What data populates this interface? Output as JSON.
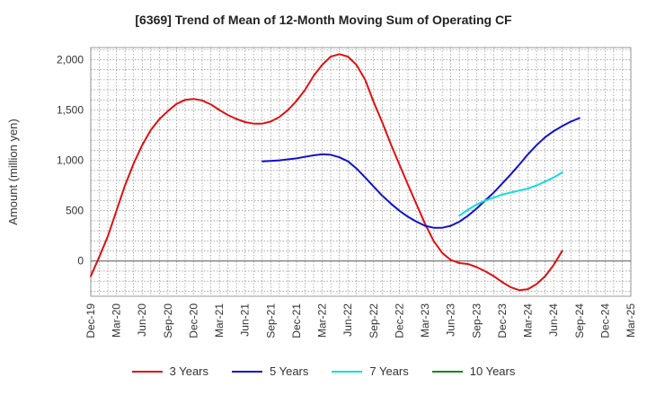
{
  "chart_data": {
    "type": "line",
    "title": "[6369]  Trend of Mean of 12-Month Moving Sum of Operating CF",
    "xlabel": "",
    "ylabel": "Amount (million yen)",
    "ylim": [
      -350,
      2120
    ],
    "yticks": [
      0,
      500,
      1000,
      1500,
      2000
    ],
    "ytick_labels": [
      "0",
      "500",
      "1,000",
      "1,500",
      "2,000"
    ],
    "x_categories": [
      "Dec-19",
      "Mar-20",
      "Jun-20",
      "Sep-20",
      "Dec-20",
      "Mar-21",
      "Jun-21",
      "Sep-21",
      "Dec-21",
      "Mar-22",
      "Jun-22",
      "Sep-22",
      "Dec-22",
      "Mar-23",
      "Jun-23",
      "Sep-23",
      "Dec-23",
      "Mar-24",
      "Jun-24",
      "Sep-24",
      "Dec-24",
      "Mar-25"
    ],
    "grid": true,
    "legend_position": "bottom",
    "series": [
      {
        "name": "3 Years",
        "color": "#dd1111",
        "points": [
          [
            0,
            -150
          ],
          [
            0.33,
            40
          ],
          [
            0.67,
            250
          ],
          [
            1,
            500
          ],
          [
            1.33,
            750
          ],
          [
            1.67,
            970
          ],
          [
            2,
            1150
          ],
          [
            2.33,
            1300
          ],
          [
            2.67,
            1410
          ],
          [
            3,
            1490
          ],
          [
            3.33,
            1560
          ],
          [
            3.67,
            1600
          ],
          [
            4,
            1610
          ],
          [
            4.33,
            1595
          ],
          [
            4.67,
            1555
          ],
          [
            5,
            1500
          ],
          [
            5.33,
            1450
          ],
          [
            5.67,
            1410
          ],
          [
            6,
            1380
          ],
          [
            6.33,
            1365
          ],
          [
            6.67,
            1365
          ],
          [
            7,
            1385
          ],
          [
            7.33,
            1430
          ],
          [
            7.67,
            1500
          ],
          [
            8,
            1590
          ],
          [
            8.33,
            1700
          ],
          [
            8.67,
            1840
          ],
          [
            9,
            1950
          ],
          [
            9.33,
            2030
          ],
          [
            9.67,
            2055
          ],
          [
            10,
            2030
          ],
          [
            10.33,
            1950
          ],
          [
            10.67,
            1800
          ],
          [
            11,
            1580
          ],
          [
            11.33,
            1380
          ],
          [
            11.67,
            1160
          ],
          [
            12,
            960
          ],
          [
            12.33,
            760
          ],
          [
            12.67,
            560
          ],
          [
            13,
            370
          ],
          [
            13.33,
            200
          ],
          [
            13.67,
            80
          ],
          [
            14,
            10
          ],
          [
            14.33,
            -20
          ],
          [
            14.67,
            -30
          ],
          [
            15,
            -60
          ],
          [
            15.33,
            -100
          ],
          [
            15.67,
            -150
          ],
          [
            16,
            -210
          ],
          [
            16.33,
            -260
          ],
          [
            16.67,
            -290
          ],
          [
            17,
            -280
          ],
          [
            17.33,
            -230
          ],
          [
            17.67,
            -150
          ],
          [
            18,
            -40
          ],
          [
            18.33,
            100
          ]
        ]
      },
      {
        "name": "5 Years",
        "color": "#1111cc",
        "points": [
          [
            6.67,
            990
          ],
          [
            7,
            995
          ],
          [
            7.33,
            1000
          ],
          [
            7.67,
            1010
          ],
          [
            8,
            1020
          ],
          [
            8.33,
            1035
          ],
          [
            8.67,
            1050
          ],
          [
            9,
            1060
          ],
          [
            9.33,
            1055
          ],
          [
            9.67,
            1030
          ],
          [
            10,
            990
          ],
          [
            10.33,
            920
          ],
          [
            10.67,
            830
          ],
          [
            11,
            740
          ],
          [
            11.33,
            650
          ],
          [
            11.67,
            570
          ],
          [
            12,
            500
          ],
          [
            12.33,
            440
          ],
          [
            12.67,
            390
          ],
          [
            13,
            350
          ],
          [
            13.33,
            330
          ],
          [
            13.67,
            330
          ],
          [
            14,
            350
          ],
          [
            14.33,
            390
          ],
          [
            14.67,
            450
          ],
          [
            15,
            520
          ],
          [
            15.33,
            600
          ],
          [
            15.67,
            680
          ],
          [
            16,
            770
          ],
          [
            16.33,
            860
          ],
          [
            16.67,
            960
          ],
          [
            17,
            1060
          ],
          [
            17.33,
            1150
          ],
          [
            17.67,
            1230
          ],
          [
            18,
            1290
          ],
          [
            18.33,
            1340
          ],
          [
            18.67,
            1385
          ],
          [
            19,
            1420
          ]
        ]
      },
      {
        "name": "7 Years",
        "color": "#11dddd",
        "points": [
          [
            14.33,
            450
          ],
          [
            14.67,
            510
          ],
          [
            15,
            560
          ],
          [
            15.33,
            600
          ],
          [
            15.67,
            630
          ],
          [
            16,
            660
          ],
          [
            16.33,
            680
          ],
          [
            16.67,
            700
          ],
          [
            17,
            720
          ],
          [
            17.33,
            750
          ],
          [
            17.67,
            790
          ],
          [
            18,
            830
          ],
          [
            18.33,
            880
          ]
        ]
      },
      {
        "name": "10 Years",
        "color": "#118811",
        "points": []
      }
    ]
  }
}
